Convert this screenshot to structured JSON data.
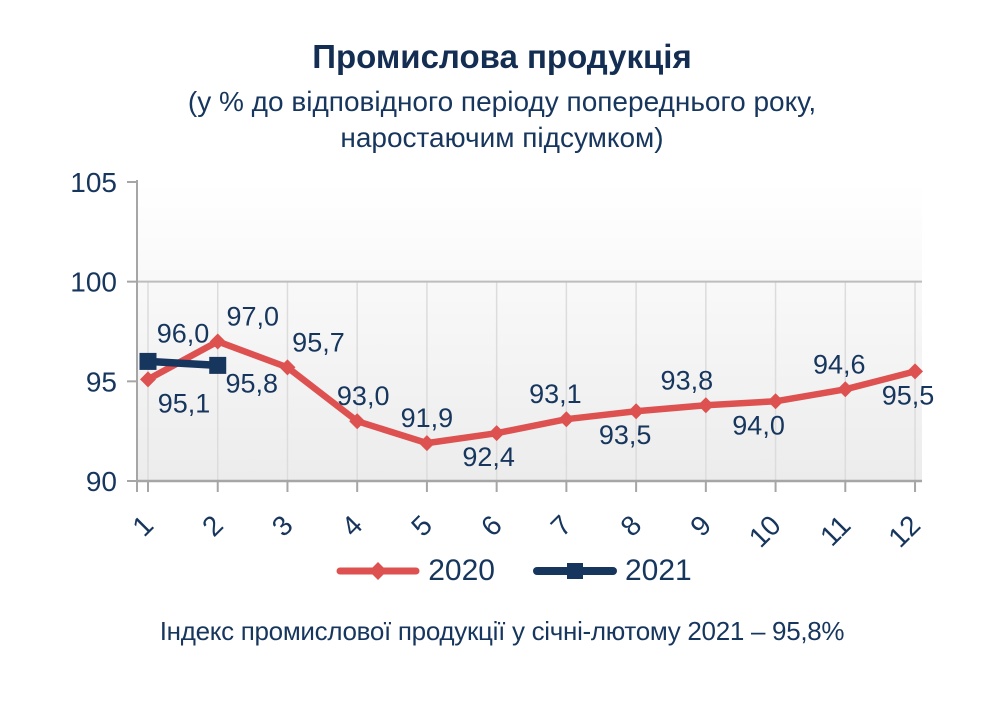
{
  "header": {
    "title": "Промислова продукція",
    "subtitle_line1": "(у % до відповідного періоду попереднього року,",
    "subtitle_line2": "наростаючим підсумком)"
  },
  "footnote": "Індекс промислової продукції у січні-лютому 2021 – 95,8%",
  "colors": {
    "title_navy": "#132e52",
    "text_navy": "#17365d",
    "series_red": "#dd5250",
    "series_navy": "#17365d",
    "axis_gray": "#a6a6a6",
    "gridline_gray": "#dcdcdc",
    "line100_gray": "#bdbdbd",
    "plot_bg_top": "#ffffff",
    "plot_bg_bottom": "#ececec"
  },
  "chart_data": {
    "type": "line",
    "title": "Промислова продукція",
    "categories": [
      "1",
      "2",
      "3",
      "4",
      "5",
      "6",
      "7",
      "8",
      "9",
      "10",
      "11",
      "12"
    ],
    "xlabel": "",
    "ylabel": "",
    "ylim": [
      90,
      105
    ],
    "yticks": [
      "90",
      "95",
      "100",
      "105"
    ],
    "ytick_values": [
      90,
      95,
      100,
      105
    ],
    "grid": "vertical gridlines below 100 line; horizontal line at 100",
    "legend_position": "bottom",
    "series": [
      {
        "name": "2020",
        "color": "#dd5250",
        "marker": "diamond",
        "x": [
          1,
          2,
          3,
          4,
          5,
          6,
          7,
          8,
          9,
          10,
          11,
          12
        ],
        "values": [
          95.1,
          97.0,
          95.7,
          93.0,
          91.9,
          92.4,
          93.1,
          93.5,
          93.8,
          94.0,
          94.6,
          95.5
        ],
        "labels": [
          "95,1",
          "97,0",
          "95,7",
          "93,0",
          "91,9",
          "92,4",
          "93,1",
          "93,5",
          "93,8",
          "94,0",
          "94,6",
          "95,5"
        ],
        "label_positions": [
          "below",
          "above",
          "above",
          "above",
          "above",
          "below",
          "above",
          "below",
          "above",
          "below",
          "above",
          "below"
        ]
      },
      {
        "name": "2021",
        "color": "#17365d",
        "marker": "square",
        "x": [
          1,
          2
        ],
        "values": [
          96.0,
          95.8
        ],
        "labels": [
          "96,0",
          "95,8"
        ],
        "label_positions": [
          "above",
          "below"
        ]
      }
    ]
  }
}
